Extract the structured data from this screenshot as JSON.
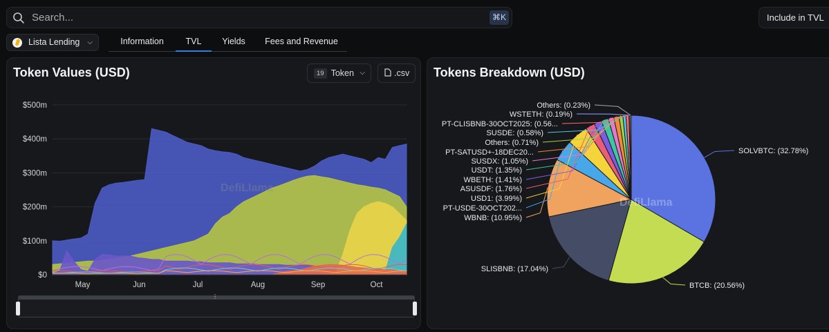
{
  "search": {
    "placeholder": "Search...",
    "shortcut": "⌘K"
  },
  "include_button": {
    "label": "Include in TVL"
  },
  "protocol_selector": {
    "label": "Lista Lending"
  },
  "tabs": [
    {
      "label": "Information",
      "active": false
    },
    {
      "label": "TVL",
      "active": true
    },
    {
      "label": "Yields",
      "active": false
    },
    {
      "label": "Fees and Revenue",
      "active": false
    }
  ],
  "left_panel": {
    "title": "Token Values (USD)",
    "token_count": "19",
    "token_button": "Token",
    "csv_button": ".csv",
    "watermark": "DefiLlama"
  },
  "right_panel": {
    "title": "Tokens Breakdown (USD)",
    "watermark": "DefiLlama"
  },
  "colors": {
    "accent": "#2f7de1",
    "area_main": "#4556b8",
    "area_second": "#b2c244"
  },
  "chart_data": [
    {
      "type": "area",
      "title": "Token Values (USD)",
      "y_ticks": [
        "$0",
        "$100m",
        "$200m",
        "$300m",
        "$400m",
        "$500m"
      ],
      "ylim": [
        0,
        500
      ],
      "x_ticks": [
        "May",
        "Jun",
        "Jul",
        "Aug",
        "Sep",
        "Oct"
      ],
      "x": [
        0,
        2,
        4,
        6,
        8,
        10,
        12,
        14,
        16,
        18,
        20,
        22,
        24,
        26,
        28,
        30,
        32,
        34,
        36,
        38,
        40,
        42,
        44,
        46,
        48,
        50,
        52,
        54,
        56,
        58,
        60,
        62,
        64,
        66,
        68,
        70,
        72,
        74,
        76,
        78,
        80,
        82,
        84,
        86,
        88,
        90,
        92,
        94,
        96,
        98,
        100
      ],
      "series": [
        {
          "name": "SOLVBTC",
          "color": "#4b5bc0",
          "values": [
            100,
            98,
            102,
            105,
            108,
            120,
            210,
            255,
            265,
            270,
            272,
            275,
            278,
            280,
            430,
            425,
            420,
            410,
            400,
            390,
            385,
            380,
            370,
            365,
            362,
            360,
            355,
            345,
            340,
            335,
            330,
            325,
            320,
            315,
            310,
            305,
            310,
            320,
            335,
            345,
            350,
            355,
            350,
            345,
            340,
            330,
            345,
            340,
            375,
            380,
            385
          ]
        },
        {
          "name": "BTCB",
          "color": "#b2c244",
          "values": [
            30,
            32,
            34,
            36,
            38,
            40,
            40,
            42,
            45,
            48,
            52,
            55,
            60,
            65,
            70,
            75,
            80,
            85,
            90,
            95,
            100,
            110,
            120,
            150,
            170,
            180,
            200,
            215,
            225,
            235,
            245,
            255,
            262,
            270,
            278,
            285,
            290,
            292,
            288,
            285,
            280,
            275,
            270,
            265,
            262,
            258,
            255,
            250,
            240,
            230,
            200
          ]
        },
        {
          "name": "SLISBNB",
          "color": "#6a58c8",
          "values": [
            5,
            10,
            70,
            40,
            15,
            10,
            45,
            60,
            58,
            55,
            55,
            55,
            50,
            48,
            45,
            45,
            40,
            40,
            40,
            40,
            38,
            38,
            35,
            35,
            35,
            35,
            32,
            32,
            32,
            30,
            30,
            30,
            30,
            28,
            28,
            28,
            28,
            25,
            25,
            25,
            25,
            25,
            22,
            22,
            22,
            20,
            20,
            20,
            20,
            20,
            20
          ]
        },
        {
          "name": "WBNB",
          "color": "#e8d24a",
          "values": [
            0,
            0,
            0,
            0,
            0,
            0,
            0,
            0,
            0,
            0,
            0,
            0,
            0,
            0,
            0,
            0,
            0,
            0,
            0,
            0,
            0,
            0,
            0,
            0,
            0,
            0,
            0,
            0,
            0,
            0,
            0,
            0,
            0,
            0,
            0,
            0,
            0,
            0,
            0,
            2,
            5,
            60,
            130,
            180,
            200,
            210,
            215,
            210,
            200,
            180,
            160
          ]
        },
        {
          "name": "PT-USDE-30OCT202...",
          "color": "#3db6c8",
          "values": [
            0,
            0,
            0,
            0,
            0,
            0,
            0,
            0,
            0,
            0,
            0,
            0,
            0,
            0,
            0,
            0,
            0,
            0,
            0,
            0,
            0,
            0,
            0,
            0,
            0,
            0,
            0,
            0,
            0,
            0,
            0,
            0,
            0,
            0,
            0,
            0,
            0,
            0,
            0,
            0,
            0,
            0,
            0,
            0,
            0,
            0,
            0,
            10,
            80,
            110,
            150
          ]
        },
        {
          "name": "USD1",
          "color": "#e66b4c",
          "values": [
            0,
            0,
            0,
            0,
            0,
            0,
            0,
            0,
            0,
            0,
            0,
            0,
            0,
            0,
            0,
            0,
            0,
            0,
            0,
            0,
            0,
            0,
            0,
            0,
            0,
            0,
            0,
            0,
            0,
            0,
            0,
            0,
            5,
            10,
            12,
            15,
            20,
            25,
            28,
            30,
            30,
            28,
            25,
            22,
            20,
            18,
            18,
            15,
            15,
            12,
            10
          ]
        }
      ]
    },
    {
      "type": "pie",
      "title": "Tokens Breakdown (USD)",
      "slices": [
        {
          "label": "SOLVBTC: (32.78%)",
          "value": 32.78,
          "color": "#5b73e0"
        },
        {
          "label": "BTCB: (20.56%)",
          "value": 20.56,
          "color": "#c4dc52"
        },
        {
          "label": "SLISBNB: (17.04%)",
          "value": 17.04,
          "color": "#444c66"
        },
        {
          "label": "WBNB: (10.95%)",
          "value": 10.95,
          "color": "#f0a35e"
        },
        {
          "label": "PT-USDE-30OCT202...",
          "value": 3.99,
          "color": "#47a7e8"
        },
        {
          "label": "USD1: (3.99%)",
          "value": 3.99,
          "color": "#f5d43b"
        },
        {
          "label": "ASUSDF: (1.76%)",
          "value": 1.76,
          "color": "#e85d7a"
        },
        {
          "label": "WBETH: (1.41%)",
          "value": 1.41,
          "color": "#7c5ce0"
        },
        {
          "label": "USDT: (1.35%)",
          "value": 1.35,
          "color": "#3ec7a0"
        },
        {
          "label": "SUSDX: (1.05%)",
          "value": 1.05,
          "color": "#e07ad0"
        },
        {
          "label": "PT-SATUSD+-18DEC20...",
          "value": 1.0,
          "color": "#f28a3a"
        },
        {
          "label": "Others: (0.71%)",
          "value": 0.71,
          "color": "#9fd34a"
        },
        {
          "label": "SUSDE: (0.58%)",
          "value": 0.58,
          "color": "#52c6e0"
        },
        {
          "label": "PT-CLISBNB-30OCT2025: (0.56...",
          "value": 0.56,
          "color": "#ff6b6b"
        },
        {
          "label": "WSTETH: (0.19%)",
          "value": 0.19,
          "color": "#9aa3ff"
        },
        {
          "label": "Others: (0.23%)",
          "value": 0.23,
          "color": "#a8a8a8"
        }
      ]
    }
  ]
}
